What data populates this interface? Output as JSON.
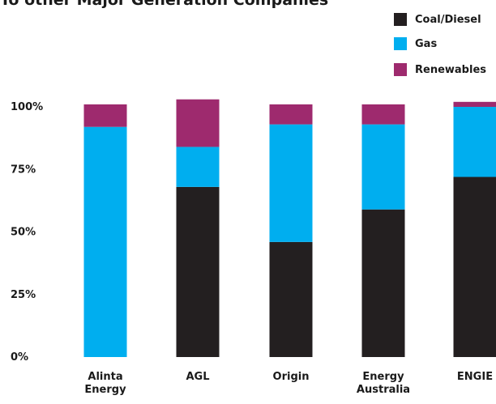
{
  "chart_data": {
    "type": "bar",
    "stacked": true,
    "title": "To other Major Generation Companies",
    "categories": [
      [
        "Alinta",
        "Energy"
      ],
      [
        "AGL"
      ],
      [
        "Origin"
      ],
      [
        "Energy",
        "Australia"
      ],
      [
        "ENGIE"
      ]
    ],
    "series": [
      {
        "name": "Coal/Diesel",
        "color": "#231f20",
        "values": [
          0,
          68,
          46,
          59,
          72
        ]
      },
      {
        "name": "Gas",
        "color": "#00aeef",
        "values": [
          92,
          16,
          47,
          34,
          28
        ]
      },
      {
        "name": "Renewables",
        "color": "#9e2a6e",
        "values": [
          9,
          19,
          8,
          8,
          2
        ]
      }
    ],
    "ylim": [
      0,
      100
    ],
    "yticks": [
      "0%",
      "25%",
      "50%",
      "75%",
      "100%"
    ],
    "ytick_values": [
      0,
      25,
      50,
      75,
      100
    ],
    "legend_position": "top-right",
    "grid": false
  }
}
